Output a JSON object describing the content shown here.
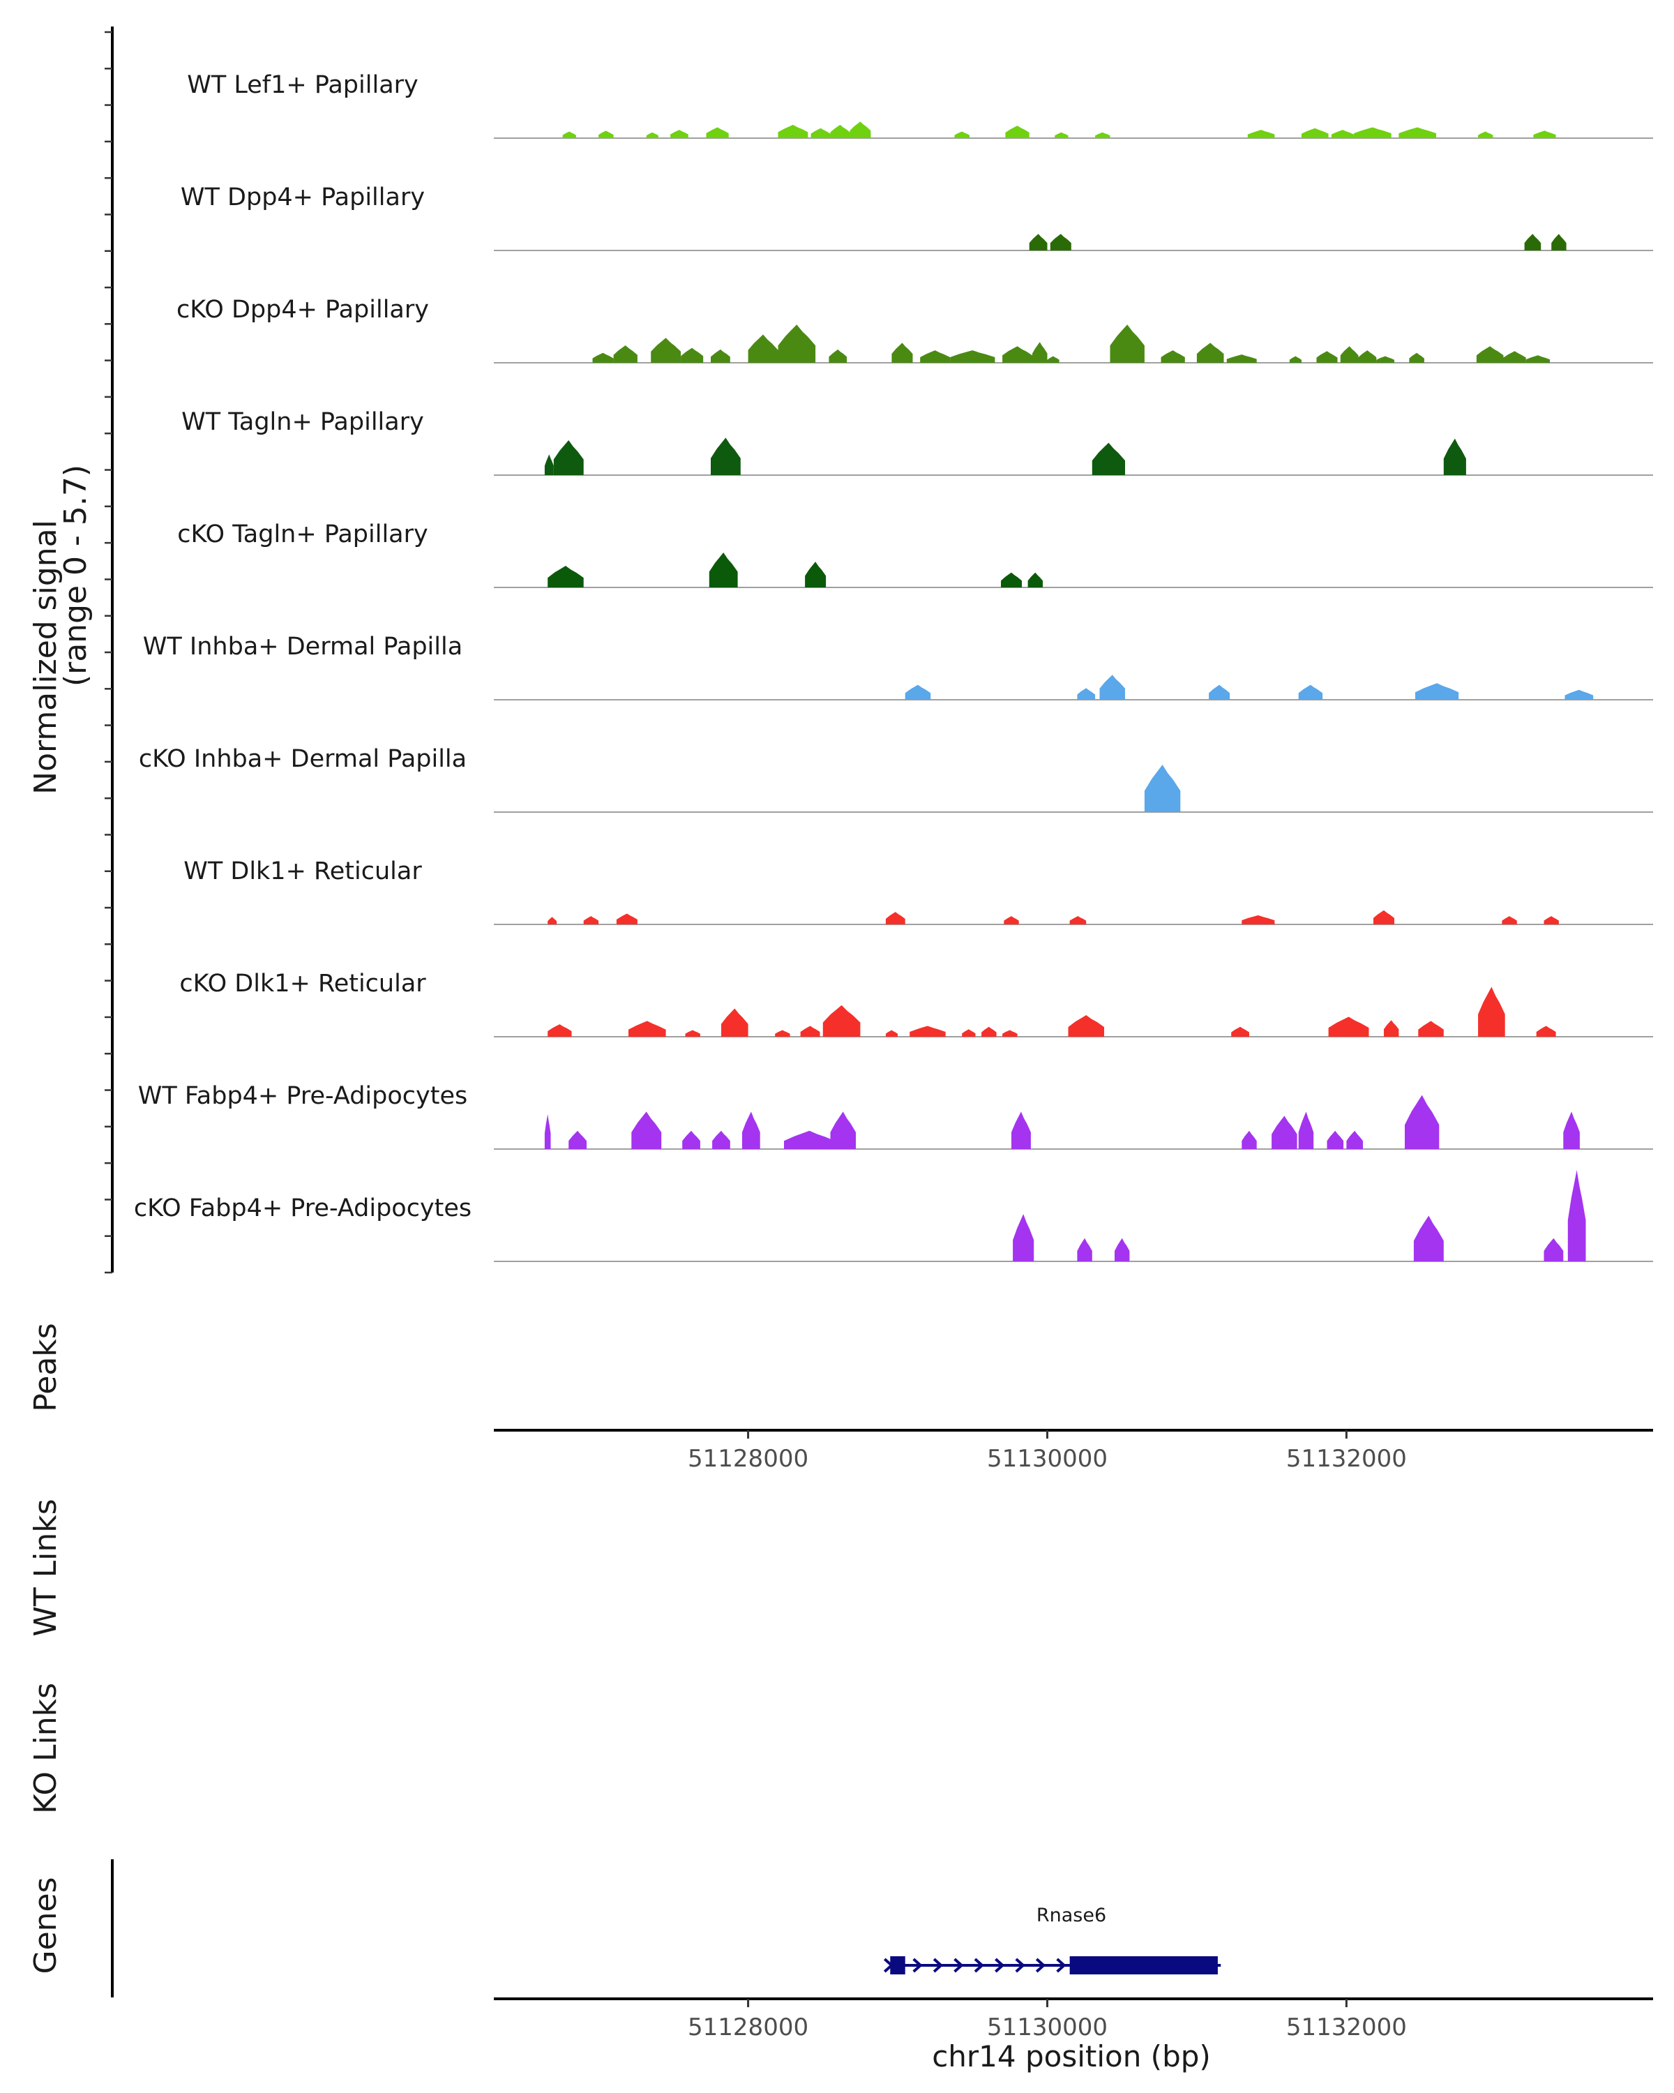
{
  "chart_data": {
    "type": "area",
    "chromosome": "chr14",
    "region": [
      51126300,
      51134050
    ],
    "signal_axis": {
      "label_line1": "Normalized signal",
      "label_line2": "(range 0 - 5.7)",
      "range": [
        0,
        5.7
      ]
    },
    "tracks": [
      {
        "name": "WT Lef1+ Papillary",
        "color": "#6fd10f",
        "peaks": [
          [
            51126760,
            51126850,
            0.8
          ],
          [
            51127000,
            51127100,
            0.9
          ],
          [
            51127320,
            51127400,
            0.7
          ],
          [
            51127480,
            51127600,
            1.0
          ],
          [
            51127720,
            51127870,
            1.3
          ],
          [
            51128200,
            51128400,
            1.6
          ],
          [
            51128420,
            51128550,
            1.2
          ],
          [
            51128550,
            51128680,
            1.6
          ],
          [
            51128680,
            51128820,
            2.0
          ],
          [
            51129380,
            51129480,
            0.8
          ],
          [
            51129720,
            51129880,
            1.5
          ],
          [
            51130050,
            51130140,
            0.7
          ],
          [
            51130320,
            51130420,
            0.7
          ],
          [
            51131340,
            51131520,
            1.0
          ],
          [
            51131700,
            51131880,
            1.2
          ],
          [
            51131900,
            51132050,
            1.0
          ],
          [
            51132050,
            51132300,
            1.3
          ],
          [
            51132350,
            51132600,
            1.3
          ],
          [
            51132880,
            51132980,
            0.8
          ],
          [
            51133250,
            51133400,
            0.9
          ]
        ]
      },
      {
        "name": "WT Dpp4+ Papillary",
        "color": "#2b6b07",
        "peaks": [
          [
            51129880,
            51130000,
            2.0
          ],
          [
            51130020,
            51130160,
            2.0
          ],
          [
            51133190,
            51133300,
            2.0
          ],
          [
            51133370,
            51133470,
            2.0
          ]
        ]
      },
      {
        "name": "cKO Dpp4+ Papillary",
        "color": "#4a8a13",
        "peaks": [
          [
            51126960,
            51127100,
            1.2
          ],
          [
            51127100,
            51127260,
            2.1
          ],
          [
            51127350,
            51127550,
            3.0
          ],
          [
            51127550,
            51127700,
            1.8
          ],
          [
            51127750,
            51127880,
            1.6
          ],
          [
            51128000,
            51128200,
            3.4
          ],
          [
            51128200,
            51128450,
            4.6
          ],
          [
            51128540,
            51128660,
            1.6
          ],
          [
            51128960,
            51129100,
            2.4
          ],
          [
            51129150,
            51129350,
            1.5
          ],
          [
            51129350,
            51129650,
            1.5
          ],
          [
            51129700,
            51129900,
            2.0
          ],
          [
            51129900,
            51130000,
            2.5
          ],
          [
            51130000,
            51130080,
            0.8
          ],
          [
            51130420,
            51130650,
            4.6
          ],
          [
            51130760,
            51130920,
            1.5
          ],
          [
            51131000,
            51131180,
            2.4
          ],
          [
            51131200,
            51131400,
            1.0
          ],
          [
            51131620,
            51131700,
            0.8
          ],
          [
            51131800,
            51131940,
            1.4
          ],
          [
            51131960,
            51132080,
            2.0
          ],
          [
            51132080,
            51132200,
            1.5
          ],
          [
            51132200,
            51132320,
            0.8
          ],
          [
            51132420,
            51132520,
            1.2
          ],
          [
            51132870,
            51133050,
            2.0
          ],
          [
            51133050,
            51133200,
            1.4
          ],
          [
            51133200,
            51133360,
            0.9
          ]
        ]
      },
      {
        "name": "WT Tagln+ Papillary",
        "color": "#0e5a0e",
        "peaks": [
          [
            51126640,
            51126700,
            2.5
          ],
          [
            51126700,
            51126900,
            4.2
          ],
          [
            51127750,
            51127950,
            4.5
          ],
          [
            51130300,
            51130520,
            3.9
          ],
          [
            51132650,
            51132800,
            4.4
          ]
        ]
      },
      {
        "name": "cKO Tagln+ Papillary",
        "color": "#0a5a0a",
        "peaks": [
          [
            51126660,
            51126900,
            2.6
          ],
          [
            51127740,
            51127930,
            4.2
          ],
          [
            51128380,
            51128520,
            3.1
          ],
          [
            51129690,
            51129830,
            1.8
          ],
          [
            51129870,
            51129970,
            1.8
          ]
        ]
      },
      {
        "name": "WT Inhba+ Dermal Papilla",
        "color": "#5aa7ea",
        "peaks": [
          [
            51129050,
            51129220,
            1.8
          ],
          [
            51130200,
            51130320,
            1.4
          ],
          [
            51130350,
            51130520,
            3.0
          ],
          [
            51131080,
            51131220,
            1.8
          ],
          [
            51131680,
            51131840,
            1.8
          ],
          [
            51132460,
            51132750,
            2.0
          ],
          [
            51133460,
            51133650,
            1.2
          ]
        ]
      },
      {
        "name": "cKO Inhba+ Dermal Papilla",
        "color": "#5aa7ea",
        "peaks": [
          [
            51130650,
            51130890,
            5.7
          ]
        ]
      },
      {
        "name": "WT Dlk1+ Reticular",
        "color": "#f5302a",
        "peaks": [
          [
            51126660,
            51126720,
            0.9
          ],
          [
            51126900,
            51127000,
            1.0
          ],
          [
            51127120,
            51127260,
            1.3
          ],
          [
            51128920,
            51129050,
            1.5
          ],
          [
            51129710,
            51129810,
            1.0
          ],
          [
            51130150,
            51130260,
            1.0
          ],
          [
            51131300,
            51131520,
            1.1
          ],
          [
            51132180,
            51132320,
            1.7
          ],
          [
            51133040,
            51133140,
            1.0
          ],
          [
            51133320,
            51133420,
            1.0
          ]
        ]
      },
      {
        "name": "cKO Dlk1+ Reticular",
        "color": "#f5302a",
        "peaks": [
          [
            51126660,
            51126820,
            1.5
          ],
          [
            51127200,
            51127450,
            1.9
          ],
          [
            51127580,
            51127680,
            0.8
          ],
          [
            51127820,
            51128000,
            3.4
          ],
          [
            51128180,
            51128280,
            0.8
          ],
          [
            51128350,
            51128480,
            1.3
          ],
          [
            51128500,
            51128750,
            3.8
          ],
          [
            51128920,
            51129000,
            0.8
          ],
          [
            51129080,
            51129320,
            1.3
          ],
          [
            51129430,
            51129520,
            0.9
          ],
          [
            51129560,
            51129660,
            1.2
          ],
          [
            51129700,
            51129800,
            0.8
          ],
          [
            51130140,
            51130380,
            2.6
          ],
          [
            51131230,
            51131350,
            1.2
          ],
          [
            51131880,
            51132150,
            2.4
          ],
          [
            51132250,
            51132350,
            2.0
          ],
          [
            51132480,
            51132650,
            1.9
          ],
          [
            51132880,
            51133060,
            6.0
          ],
          [
            51133270,
            51133400,
            1.3
          ]
        ]
      },
      {
        "name": "WT Fabp4+ Pre-Adipocytes",
        "color": "#a434f0",
        "peaks": [
          [
            51126640,
            51126680,
            4.2
          ],
          [
            51126800,
            51126920,
            2.2
          ],
          [
            51127220,
            51127420,
            4.5
          ],
          [
            51127560,
            51127680,
            2.2
          ],
          [
            51127760,
            51127880,
            2.2
          ],
          [
            51127960,
            51128080,
            4.5
          ],
          [
            51128240,
            51128580,
            2.2
          ],
          [
            51128550,
            51128720,
            4.5
          ],
          [
            51129760,
            51129890,
            4.5
          ],
          [
            51131300,
            51131400,
            2.2
          ],
          [
            51131500,
            51131670,
            4.0
          ],
          [
            51131680,
            51131780,
            4.5
          ],
          [
            51131870,
            51131980,
            2.2
          ],
          [
            51132000,
            51132110,
            2.2
          ],
          [
            51132390,
            51132620,
            6.5
          ],
          [
            51133450,
            51133560,
            4.5
          ]
        ]
      },
      {
        "name": "cKO Fabp4+ Pre-Adipocytes",
        "color": "#a434f0",
        "peaks": [
          [
            51129770,
            51129910,
            5.7
          ],
          [
            51130200,
            51130300,
            2.8
          ],
          [
            51130450,
            51130550,
            2.8
          ],
          [
            51132450,
            51132650,
            5.5
          ],
          [
            51133320,
            51133450,
            2.8
          ],
          [
            51133480,
            51133600,
            11.0
          ]
        ]
      }
    ],
    "panels": {
      "peaks": "Peaks",
      "wt_links": "WT Links",
      "ko_links": "KO Links",
      "genes": "Genes"
    },
    "x_ticks": [
      {
        "value": 51128000,
        "label": "51128000"
      },
      {
        "value": 51130000,
        "label": "51130000"
      },
      {
        "value": 51132000,
        "label": "51132000"
      }
    ],
    "xlabel": "chr14 position (bp)",
    "gene": {
      "name": "Rnase6",
      "strand": "+",
      "start": 51128950,
      "end": 51131160,
      "exons": [
        [
          51128950,
          51129050
        ],
        [
          51130150,
          51131140
        ]
      ],
      "color": "#0a0a80"
    }
  }
}
